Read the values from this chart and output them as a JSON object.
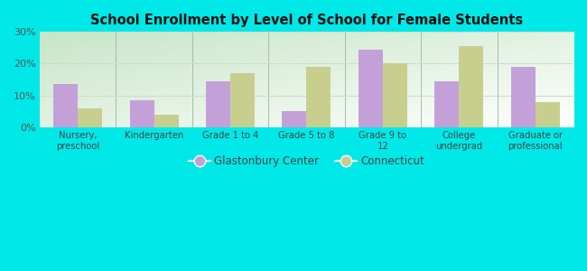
{
  "title": "School Enrollment by Level of School for Female Students",
  "categories": [
    "Nursery,\npreschool",
    "Kindergarten",
    "Grade 1 to 4",
    "Grade 5 to 8",
    "Grade 9 to\n12",
    "College\nundergrad",
    "Graduate or\nprofessional"
  ],
  "glastonbury": [
    13.5,
    8.5,
    14.5,
    5.0,
    24.5,
    14.5,
    19.0
  ],
  "connecticut": [
    6.0,
    4.0,
    17.0,
    19.0,
    20.0,
    25.5,
    8.0
  ],
  "glastonbury_color": "#c4a0d8",
  "connecticut_color": "#c8cf8e",
  "background_color": "#00e8e8",
  "ylim": [
    0,
    30
  ],
  "yticks": [
    0,
    10,
    20,
    30
  ],
  "ytick_labels": [
    "0%",
    "10%",
    "20%",
    "30%"
  ],
  "legend_glastonbury": "Glastonbury Center",
  "legend_connecticut": "Connecticut",
  "bar_width": 0.32,
  "grid_color": "#ccddcc",
  "separator_color": "#aabbaa"
}
